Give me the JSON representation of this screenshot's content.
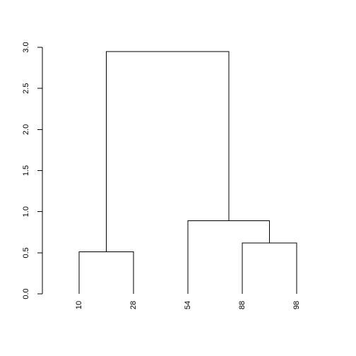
{
  "chart_data": {
    "type": "dendrogram",
    "title": "",
    "xlabel": "",
    "ylabel": "",
    "ylim": [
      0,
      3.0
    ],
    "yticks": [
      0.0,
      0.5,
      1.0,
      1.5,
      2.0,
      2.5,
      3.0
    ],
    "ytick_labels": [
      "0.0",
      "0.5",
      "1.0",
      "1.5",
      "2.0",
      "2.5",
      "3.0"
    ],
    "grid": false,
    "legend": "none",
    "leaves": [
      "10",
      "28",
      "54",
      "88",
      "98"
    ],
    "merges": [
      {
        "name": "merge-10-28",
        "left": "leaf:10",
        "right": "leaf:28",
        "height": 0.51
      },
      {
        "name": "merge-88-98",
        "left": "leaf:88",
        "right": "leaf:98",
        "height": 0.62
      },
      {
        "name": "merge-54-88-98",
        "left": "leaf:54",
        "right": "merge:merge-88-98",
        "height": 0.89
      },
      {
        "name": "merge-root",
        "left": "merge:merge-10-28",
        "right": "merge:merge-54-88-98",
        "height": 2.95
      }
    ],
    "line_color": "#000000"
  }
}
